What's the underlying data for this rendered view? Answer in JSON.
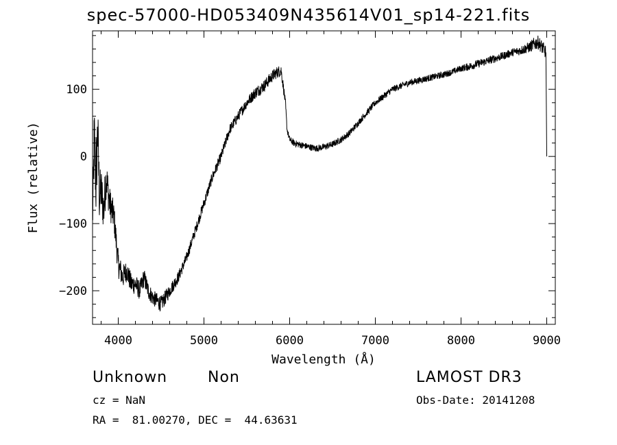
{
  "chart_data": {
    "type": "line",
    "title": "spec-57000-HD053409N435614V01_sp14-221.fits",
    "xlabel": "Wavelength (Å)",
    "ylabel": "Flux (relative)",
    "xlim": [
      3700,
      9100
    ],
    "ylim": [
      -250,
      187
    ],
    "x_ticks": [
      4000,
      5000,
      6000,
      7000,
      8000,
      9000
    ],
    "y_ticks": [
      -200,
      -100,
      0,
      100
    ],
    "x_tick_labels": [
      "4000",
      "5000",
      "6000",
      "7000",
      "8000",
      "9000"
    ],
    "y_tick_labels": [
      "−200",
      "−100",
      "0",
      "100"
    ],
    "grid": false,
    "series": [
      {
        "color": "#000000",
        "x": [
          3700,
          3720,
          3740,
          3760,
          3780,
          3800,
          3830,
          3860,
          3900,
          3950,
          4000,
          4050,
          4100,
          4150,
          4200,
          4250,
          4300,
          4350,
          4400,
          4450,
          4500,
          4550,
          4600,
          4700,
          4800,
          4900,
          5000,
          5100,
          5200,
          5300,
          5400,
          5500,
          5600,
          5700,
          5800,
          5850,
          5900,
          5920,
          5950,
          5970,
          6000,
          6050,
          6100,
          6200,
          6300,
          6400,
          6500,
          6600,
          6700,
          6800,
          6900,
          7000,
          7100,
          7200,
          7300,
          7400,
          7500,
          7600,
          7700,
          7800,
          7900,
          8000,
          8100,
          8200,
          8300,
          8400,
          8500,
          8600,
          8700,
          8800,
          8850,
          8900,
          8950,
          8990,
          9000
        ],
        "y": [
          -100,
          30,
          -40,
          40,
          -60,
          -50,
          -80,
          -30,
          -70,
          -90,
          -160,
          -180,
          -170,
          -190,
          -190,
          -200,
          -180,
          -200,
          -210,
          -215,
          -220,
          -210,
          -200,
          -180,
          -150,
          -110,
          -70,
          -30,
          0,
          40,
          60,
          80,
          95,
          105,
          120,
          125,
          128,
          110,
          80,
          40,
          25,
          20,
          18,
          15,
          12,
          14,
          18,
          25,
          35,
          50,
          65,
          80,
          90,
          100,
          105,
          110,
          113,
          116,
          119,
          122,
          126,
          131,
          134,
          138,
          142,
          146,
          150,
          155,
          158,
          163,
          167,
          170,
          162,
          155,
          0
        ],
        "noise": [
          25,
          55,
          60,
          50,
          40,
          35,
          35,
          30,
          25,
          22,
          20,
          18,
          16,
          16,
          15,
          14,
          14,
          13,
          12,
          12,
          12,
          11,
          10,
          9,
          8,
          8,
          8,
          8,
          8,
          8,
          8,
          8,
          9,
          9,
          9,
          9,
          9,
          8,
          6,
          5,
          5,
          5,
          5,
          5,
          5,
          5,
          5,
          5,
          5,
          5,
          5,
          5,
          5,
          5,
          5,
          5,
          5,
          5,
          5,
          5,
          5,
          5,
          6,
          6,
          6,
          6,
          6,
          6,
          7,
          8,
          10,
          10,
          10,
          10,
          0
        ]
      }
    ]
  },
  "footer": {
    "object_class": "Unknown",
    "object_subclass": "Non",
    "survey": "LAMOST DR3",
    "redshift": "cz = NaN",
    "obs_date": "Obs-Date: 20141208",
    "coords": "RA =  81.00270, DEC =  44.63631"
  }
}
